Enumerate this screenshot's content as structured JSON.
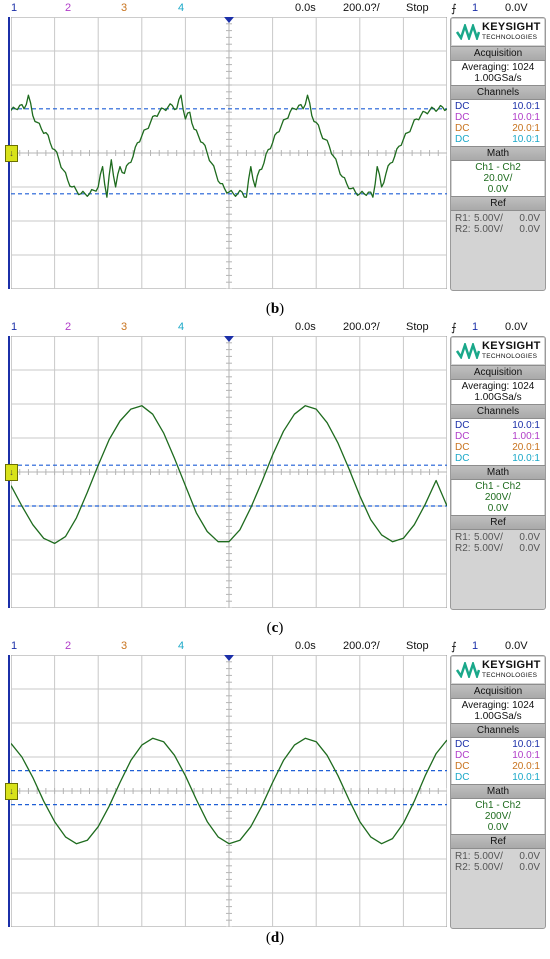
{
  "chart_data": [
    {
      "type": "line",
      "title": "",
      "caption": "b",
      "topbar": {
        "ch1": "1",
        "ch2": "2",
        "ch3": "3",
        "ch4": "4",
        "time_offset": "0.0s",
        "time_scale": "200.0?/",
        "run_state": "Stop",
        "trigger_icon": "⨍",
        "trigger_src": "1",
        "trigger_level": "0.0V"
      },
      "grid": {
        "x_divisions": 10,
        "y_divisions": 8
      },
      "cursor_levels": [
        1.3,
        -1.2
      ],
      "trace": "distorted",
      "x": [
        0,
        0.1,
        0.2,
        0.3,
        0.4,
        0.5,
        0.6,
        0.7,
        0.8,
        0.9,
        1.0,
        1.1,
        1.2,
        1.3,
        1.4,
        1.5,
        1.6,
        1.7,
        1.8,
        1.9,
        2.0,
        2.1,
        2.2,
        2.3,
        2.4,
        2.5,
        2.6,
        2.7,
        2.8,
        2.9,
        3.0,
        3.1,
        3.2,
        3.3,
        3.4,
        3.5,
        3.6,
        3.7,
        3.8,
        3.9,
        4.0,
        4.1,
        4.2,
        4.3,
        4.4,
        4.5,
        4.6,
        4.7,
        4.8,
        4.9,
        5.0,
        5.1,
        5.2,
        5.3,
        5.4,
        5.5,
        5.6,
        5.7,
        5.8,
        5.9,
        6.0,
        6.1,
        6.2,
        6.3,
        6.4,
        6.5,
        6.6,
        6.7,
        6.8,
        6.9,
        7.0,
        7.1,
        7.2,
        7.3,
        7.4,
        7.5,
        7.6,
        7.7,
        7.8,
        7.9,
        8.0,
        8.1,
        8.2,
        8.3,
        8.4,
        8.5,
        8.6,
        8.7,
        8.8,
        8.9,
        9.0,
        9.1,
        9.2,
        9.3,
        9.4,
        9.5,
        9.6,
        9.7,
        9.8,
        9.9,
        10.0
      ],
      "y": [
        1.25,
        1.3,
        1.4,
        1.3,
        1.7,
        1.1,
        0.9,
        0.7,
        0.6,
        0.3,
        0.1,
        -0.2,
        -0.5,
        -0.8,
        -1.0,
        -1.1,
        -1.2,
        -1.2,
        -1.2,
        -1.1,
        -1.0,
        -0.4,
        -1.3,
        -0.2,
        -1.0,
        -0.4,
        -0.6,
        -0.3,
        -0.1,
        0.3,
        0.5,
        0.7,
        0.9,
        1.1,
        1.2,
        1.3,
        1.35,
        1.4,
        1.3,
        1.7,
        1.0,
        1.2,
        0.7,
        0.5,
        0.3,
        0.0,
        -0.3,
        -0.6,
        -0.9,
        -1.05,
        -1.15,
        -1.2,
        -1.2,
        -1.15,
        -1.3,
        -0.4,
        -1.0,
        -0.5,
        -0.3,
        0.1,
        0.3,
        0.6,
        0.8,
        1.0,
        1.2,
        1.3,
        1.4,
        1.3,
        1.7,
        1.1,
        0.9,
        0.6,
        0.4,
        0.2,
        -0.1,
        -0.4,
        -0.7,
        -0.9,
        -1.05,
        -1.15,
        -1.2,
        -1.2,
        -1.15,
        -1.3,
        -0.4,
        -1.0,
        -0.6,
        -0.3,
        -0.1,
        0.2,
        0.4,
        0.6,
        0.8,
        1.0,
        1.1,
        1.2,
        1.25,
        1.3,
        1.3,
        1.35,
        1.3
      ],
      "ylim": [
        -4,
        4
      ],
      "xlim": [
        0,
        10
      ],
      "panel": {
        "brand": "KEYSIGHT",
        "brand_sub": "TECHNOLOGIES",
        "acq_head": "Acquisition",
        "acq_mode": "Averaging: 1024",
        "acq_rate": "1.00GSa/s",
        "ch_head": "Channels",
        "channels": [
          {
            "cpl": "DC",
            "ratio": "10.0:1",
            "color": "#1b2fa8"
          },
          {
            "cpl": "DC",
            "ratio": "10.0:1",
            "color": "#b03cc8"
          },
          {
            "cpl": "DC",
            "ratio": "20.0:1",
            "color": "#c8731e"
          },
          {
            "cpl": "DC",
            "ratio": "10.0:1",
            "color": "#1aa8c8"
          }
        ],
        "math_head": "Math",
        "math_fn": "Ch1 - Ch2",
        "math_scale": "20.0V/",
        "math_offset": "0.0V",
        "ref_head": "Ref",
        "refs": [
          {
            "name": "R1:",
            "scale": "5.00V/",
            "offset": "0.0V"
          },
          {
            "name": "R2:",
            "scale": "5.00V/",
            "offset": "0.0V"
          }
        ]
      }
    },
    {
      "type": "line",
      "title": "",
      "caption": "c",
      "topbar": {
        "ch1": "1",
        "ch2": "2",
        "ch3": "3",
        "ch4": "4",
        "time_offset": "0.0s",
        "time_scale": "200.0?/",
        "run_state": "Stop",
        "trigger_icon": "⨍",
        "trigger_src": "1",
        "trigger_level": "0.0V"
      },
      "grid": {
        "x_divisions": 10,
        "y_divisions": 8
      },
      "cursor_levels": [
        0.2,
        -1.0
      ],
      "trace": "clean",
      "x": [
        0,
        0.25,
        0.5,
        0.75,
        1.0,
        1.25,
        1.5,
        1.75,
        2.0,
        2.25,
        2.5,
        2.75,
        3.0,
        3.25,
        3.5,
        3.75,
        4.0,
        4.25,
        4.5,
        4.75,
        5.0,
        5.25,
        5.5,
        5.75,
        6.0,
        6.25,
        6.5,
        6.75,
        7.0,
        7.25,
        7.5,
        7.75,
        8.0,
        8.25,
        8.5,
        8.75,
        9.0,
        9.25,
        9.5,
        9.75,
        10.0
      ],
      "y": [
        -0.4,
        -1.0,
        -1.55,
        -1.95,
        -2.1,
        -1.9,
        -1.35,
        -0.6,
        0.2,
        0.95,
        1.5,
        1.85,
        1.95,
        1.7,
        1.15,
        0.4,
        -0.4,
        -1.2,
        -1.75,
        -2.05,
        -2.05,
        -1.7,
        -1.05,
        -0.3,
        0.5,
        1.2,
        1.7,
        1.95,
        1.85,
        1.45,
        0.85,
        0.1,
        -0.7,
        -1.4,
        -1.85,
        -2.05,
        -1.95,
        -1.55,
        -0.95,
        -0.25,
        -1.0
      ],
      "ylim": [
        -4,
        4
      ],
      "xlim": [
        0,
        10
      ],
      "panel": {
        "brand": "KEYSIGHT",
        "brand_sub": "TECHNOLOGIES",
        "acq_head": "Acquisition",
        "acq_mode": "Averaging: 1024",
        "acq_rate": "1.00GSa/s",
        "ch_head": "Channels",
        "channels": [
          {
            "cpl": "DC",
            "ratio": "10.0:1",
            "color": "#1b2fa8"
          },
          {
            "cpl": "DC",
            "ratio": "1.00:1",
            "color": "#b03cc8"
          },
          {
            "cpl": "DC",
            "ratio": "20.0:1",
            "color": "#c8731e"
          },
          {
            "cpl": "DC",
            "ratio": "10.0:1",
            "color": "#1aa8c8"
          }
        ],
        "math_head": "Math",
        "math_fn": "Ch1 - Ch2",
        "math_scale": "200V/",
        "math_offset": "0.0V",
        "ref_head": "Ref",
        "refs": [
          {
            "name": "R1:",
            "scale": "5.00V/",
            "offset": "0.0V"
          },
          {
            "name": "R2:",
            "scale": "5.00V/",
            "offset": "0.0V"
          }
        ]
      }
    },
    {
      "type": "line",
      "title": "",
      "caption": "d",
      "topbar": {
        "ch1": "1",
        "ch2": "2",
        "ch3": "3",
        "ch4": "4",
        "time_offset": "0.0s",
        "time_scale": "200.0?/",
        "run_state": "Stop",
        "trigger_icon": "⨍",
        "trigger_src": "1",
        "trigger_level": "0.0V"
      },
      "grid": {
        "x_divisions": 10,
        "y_divisions": 8
      },
      "cursor_levels": [
        0.6,
        -0.4
      ],
      "trace": "clean",
      "x": [
        0,
        0.25,
        0.5,
        0.75,
        1.0,
        1.25,
        1.5,
        1.75,
        2.0,
        2.25,
        2.5,
        2.75,
        3.0,
        3.25,
        3.5,
        3.75,
        4.0,
        4.25,
        4.5,
        4.75,
        5.0,
        5.25,
        5.5,
        5.75,
        6.0,
        6.25,
        6.5,
        6.75,
        7.0,
        7.25,
        7.5,
        7.75,
        8.0,
        8.25,
        8.5,
        8.75,
        9.0,
        9.25,
        9.5,
        9.75,
        10.0
      ],
      "y": [
        1.4,
        1.0,
        0.4,
        -0.3,
        -0.9,
        -1.35,
        -1.55,
        -1.45,
        -1.05,
        -0.45,
        0.25,
        0.9,
        1.35,
        1.55,
        1.45,
        1.05,
        0.45,
        -0.25,
        -0.9,
        -1.35,
        -1.55,
        -1.45,
        -1.05,
        -0.45,
        0.25,
        0.9,
        1.35,
        1.55,
        1.45,
        1.05,
        0.45,
        -0.25,
        -0.9,
        -1.35,
        -1.55,
        -1.4,
        -0.95,
        -0.3,
        0.45,
        1.1,
        1.5
      ],
      "ylim": [
        -4,
        4
      ],
      "xlim": [
        0,
        10
      ],
      "panel": {
        "brand": "KEYSIGHT",
        "brand_sub": "TECHNOLOGIES",
        "acq_head": "Acquisition",
        "acq_mode": "Averaging: 1024",
        "acq_rate": "1.00GSa/s",
        "ch_head": "Channels",
        "channels": [
          {
            "cpl": "DC",
            "ratio": "10.0:1",
            "color": "#1b2fa8"
          },
          {
            "cpl": "DC",
            "ratio": "10.0:1",
            "color": "#b03cc8"
          },
          {
            "cpl": "DC",
            "ratio": "20.0:1",
            "color": "#c8731e"
          },
          {
            "cpl": "DC",
            "ratio": "10.0:1",
            "color": "#1aa8c8"
          }
        ],
        "math_head": "Math",
        "math_fn": "Ch1 - Ch2",
        "math_scale": "200V/",
        "math_offset": "0.0V",
        "ref_head": "Ref",
        "refs": [
          {
            "name": "R1:",
            "scale": "5.00V/",
            "offset": "0.0V"
          },
          {
            "name": "R2:",
            "scale": "5.00V/",
            "offset": "0.0V"
          }
        ]
      }
    }
  ],
  "colors": {
    "trace": "#1e6b1e",
    "cursor": "#1f5fd6",
    "grid": "#c8c8c8",
    "ch1": "#1b2fa8",
    "ch2": "#b03cc8",
    "ch3": "#c8731e",
    "ch4": "#1aa8c8",
    "math": "#1e6b1e"
  }
}
